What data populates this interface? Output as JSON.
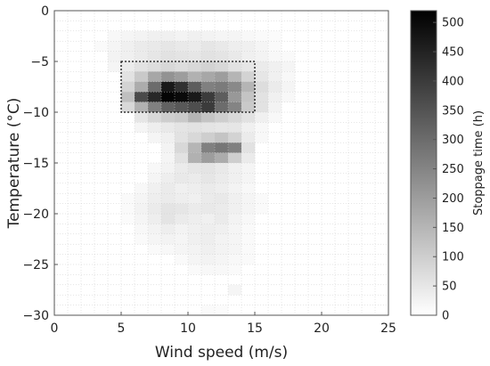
{
  "chart_data": {
    "type": "heatmap",
    "title": "",
    "xlabel": "Wind speed (m/s)",
    "ylabel": "Temperature (°C)",
    "xlim": [
      0,
      25
    ],
    "ylim": [
      -30,
      0
    ],
    "x_ticks": [
      0,
      5,
      10,
      15,
      20,
      25
    ],
    "y_ticks": [
      0,
      -5,
      -10,
      -15,
      -20,
      -25,
      -30
    ],
    "bin_size": {
      "x": 1,
      "y": 1
    },
    "grid": true,
    "colorbar": {
      "label": "Stoppage time (h)",
      "min": 0,
      "max": 520,
      "ticks": [
        0,
        50,
        100,
        150,
        200,
        250,
        300,
        350,
        400,
        450,
        500
      ],
      "colormap": "white-to-black"
    },
    "highlight_box": {
      "x_range": [
        5,
        15
      ],
      "y_range": [
        -10,
        -5
      ],
      "style": "dotted"
    },
    "cells": [
      [
        4,
        -2,
        15
      ],
      [
        5,
        -2,
        20
      ],
      [
        6,
        -2,
        25
      ],
      [
        7,
        -2,
        30
      ],
      [
        8,
        -2,
        30
      ],
      [
        9,
        -2,
        25
      ],
      [
        10,
        -2,
        30
      ],
      [
        11,
        -2,
        25
      ],
      [
        12,
        -2,
        20
      ],
      [
        13,
        -2,
        20
      ],
      [
        14,
        -2,
        15
      ],
      [
        15,
        -2,
        10
      ],
      [
        16,
        -2,
        8
      ],
      [
        3,
        -3,
        10
      ],
      [
        4,
        -3,
        20
      ],
      [
        5,
        -3,
        30
      ],
      [
        6,
        -3,
        40
      ],
      [
        7,
        -3,
        45
      ],
      [
        8,
        -3,
        50
      ],
      [
        9,
        -3,
        45
      ],
      [
        10,
        -3,
        40
      ],
      [
        11,
        -3,
        50
      ],
      [
        12,
        -3,
        45
      ],
      [
        13,
        -3,
        35
      ],
      [
        14,
        -3,
        30
      ],
      [
        15,
        -3,
        20
      ],
      [
        16,
        -3,
        10
      ],
      [
        4,
        -4,
        25
      ],
      [
        5,
        -4,
        30
      ],
      [
        6,
        -4,
        40
      ],
      [
        7,
        -4,
        50
      ],
      [
        8,
        -4,
        60
      ],
      [
        9,
        -4,
        55
      ],
      [
        10,
        -4,
        50
      ],
      [
        11,
        -4,
        60
      ],
      [
        12,
        -4,
        55
      ],
      [
        13,
        -4,
        45
      ],
      [
        14,
        -4,
        30
      ],
      [
        15,
        -4,
        25
      ],
      [
        16,
        -4,
        15
      ],
      [
        17,
        -4,
        10
      ],
      [
        4,
        -5,
        20
      ],
      [
        5,
        -5,
        40
      ],
      [
        6,
        -5,
        60
      ],
      [
        7,
        -5,
        70
      ],
      [
        8,
        -5,
        80
      ],
      [
        9,
        -5,
        70
      ],
      [
        10,
        -5,
        80
      ],
      [
        11,
        -5,
        90
      ],
      [
        12,
        -5,
        80
      ],
      [
        13,
        -5,
        60
      ],
      [
        14,
        -5,
        50
      ],
      [
        15,
        -5,
        40
      ],
      [
        16,
        -5,
        30
      ],
      [
        17,
        -5,
        20
      ],
      [
        5,
        -6,
        60
      ],
      [
        6,
        -6,
        110
      ],
      [
        7,
        -6,
        180
      ],
      [
        8,
        -6,
        220
      ],
      [
        9,
        -6,
        200
      ],
      [
        10,
        -6,
        160
      ],
      [
        11,
        -6,
        180
      ],
      [
        12,
        -6,
        200
      ],
      [
        13,
        -6,
        150
      ],
      [
        14,
        -6,
        90
      ],
      [
        15,
        -6,
        50
      ],
      [
        16,
        -6,
        30
      ],
      [
        17,
        -6,
        15
      ],
      [
        5,
        -7,
        90
      ],
      [
        6,
        -7,
        170
      ],
      [
        7,
        -7,
        300
      ],
      [
        8,
        -7,
        470
      ],
      [
        9,
        -7,
        420
      ],
      [
        10,
        -7,
        330
      ],
      [
        11,
        -7,
        260
      ],
      [
        12,
        -7,
        270
      ],
      [
        13,
        -7,
        240
      ],
      [
        14,
        -7,
        150
      ],
      [
        15,
        -7,
        70
      ],
      [
        16,
        -7,
        40
      ],
      [
        17,
        -7,
        20
      ],
      [
        5,
        -8,
        130
      ],
      [
        6,
        -8,
        370
      ],
      [
        7,
        -8,
        440
      ],
      [
        8,
        -8,
        510
      ],
      [
        9,
        -8,
        500
      ],
      [
        10,
        -8,
        470
      ],
      [
        11,
        -8,
        400
      ],
      [
        12,
        -8,
        330
      ],
      [
        13,
        -8,
        210
      ],
      [
        14,
        -8,
        120
      ],
      [
        15,
        -8,
        60
      ],
      [
        16,
        -8,
        30
      ],
      [
        17,
        -8,
        15
      ],
      [
        5,
        -9,
        80
      ],
      [
        6,
        -9,
        160
      ],
      [
        7,
        -9,
        260
      ],
      [
        8,
        -9,
        320
      ],
      [
        9,
        -9,
        340
      ],
      [
        10,
        -9,
        360
      ],
      [
        11,
        -9,
        400
      ],
      [
        12,
        -9,
        300
      ],
      [
        13,
        -9,
        250
      ],
      [
        14,
        -9,
        110
      ],
      [
        15,
        -9,
        60
      ],
      [
        16,
        -9,
        25
      ],
      [
        6,
        -10,
        50
      ],
      [
        7,
        -10,
        80
      ],
      [
        8,
        -10,
        100
      ],
      [
        9,
        -10,
        110
      ],
      [
        10,
        -10,
        150
      ],
      [
        11,
        -10,
        120
      ],
      [
        12,
        -10,
        100
      ],
      [
        13,
        -10,
        80
      ],
      [
        14,
        -10,
        60
      ],
      [
        15,
        -10,
        30
      ],
      [
        16,
        -10,
        15
      ],
      [
        6,
        -11,
        20
      ],
      [
        7,
        -11,
        35
      ],
      [
        8,
        -11,
        45
      ],
      [
        9,
        -11,
        55
      ],
      [
        10,
        -11,
        60
      ],
      [
        11,
        -11,
        55
      ],
      [
        12,
        -11,
        50
      ],
      [
        13,
        -11,
        50
      ],
      [
        14,
        -11,
        30
      ],
      [
        15,
        -11,
        15
      ],
      [
        7,
        -12,
        20
      ],
      [
        8,
        -12,
        30
      ],
      [
        9,
        -12,
        60
      ],
      [
        10,
        -12,
        80
      ],
      [
        11,
        -12,
        100
      ],
      [
        12,
        -12,
        120
      ],
      [
        13,
        -12,
        90
      ],
      [
        14,
        -12,
        40
      ],
      [
        15,
        -12,
        15
      ],
      [
        8,
        -13,
        25
      ],
      [
        9,
        -13,
        80
      ],
      [
        10,
        -13,
        150
      ],
      [
        11,
        -13,
        260
      ],
      [
        12,
        -13,
        280
      ],
      [
        13,
        -13,
        260
      ],
      [
        14,
        -13,
        60
      ],
      [
        8,
        -14,
        20
      ],
      [
        9,
        -14,
        60
      ],
      [
        10,
        -14,
        160
      ],
      [
        11,
        -14,
        200
      ],
      [
        12,
        -14,
        170
      ],
      [
        13,
        -14,
        100
      ],
      [
        14,
        -14,
        40
      ],
      [
        7,
        -15,
        15
      ],
      [
        8,
        -15,
        25
      ],
      [
        9,
        -15,
        40
      ],
      [
        10,
        -15,
        50
      ],
      [
        11,
        -15,
        55
      ],
      [
        12,
        -15,
        45
      ],
      [
        13,
        -15,
        30
      ],
      [
        14,
        -15,
        20
      ],
      [
        7,
        -16,
        20
      ],
      [
        8,
        -16,
        35
      ],
      [
        9,
        -16,
        45
      ],
      [
        10,
        -16,
        40
      ],
      [
        11,
        -16,
        50
      ],
      [
        12,
        -16,
        40
      ],
      [
        13,
        -16,
        30
      ],
      [
        14,
        -16,
        20
      ],
      [
        6,
        -17,
        15
      ],
      [
        7,
        -17,
        30
      ],
      [
        8,
        -17,
        40
      ],
      [
        9,
        -17,
        30
      ],
      [
        10,
        -17,
        35
      ],
      [
        11,
        -17,
        40
      ],
      [
        12,
        -17,
        35
      ],
      [
        13,
        -17,
        25
      ],
      [
        14,
        -17,
        15
      ],
      [
        5,
        -18,
        10
      ],
      [
        6,
        -18,
        20
      ],
      [
        7,
        -18,
        35
      ],
      [
        8,
        -18,
        40
      ],
      [
        9,
        -18,
        35
      ],
      [
        10,
        -18,
        30
      ],
      [
        11,
        -18,
        40
      ],
      [
        12,
        -18,
        45
      ],
      [
        13,
        -18,
        30
      ],
      [
        14,
        -18,
        20
      ],
      [
        15,
        -18,
        10
      ],
      [
        5,
        -19,
        10
      ],
      [
        6,
        -19,
        25
      ],
      [
        7,
        -19,
        40
      ],
      [
        8,
        -19,
        55
      ],
      [
        9,
        -19,
        50
      ],
      [
        10,
        -19,
        40
      ],
      [
        11,
        -19,
        45
      ],
      [
        12,
        -19,
        40
      ],
      [
        13,
        -19,
        30
      ],
      [
        14,
        -19,
        20
      ],
      [
        15,
        -19,
        10
      ],
      [
        5,
        -20,
        8
      ],
      [
        6,
        -20,
        20
      ],
      [
        7,
        -20,
        35
      ],
      [
        8,
        -20,
        55
      ],
      [
        9,
        -20,
        40
      ],
      [
        10,
        -20,
        35
      ],
      [
        11,
        -20,
        30
      ],
      [
        12,
        -20,
        40
      ],
      [
        13,
        -20,
        25
      ],
      [
        14,
        -20,
        15
      ],
      [
        6,
        -21,
        15
      ],
      [
        7,
        -21,
        25
      ],
      [
        8,
        -21,
        35
      ],
      [
        9,
        -21,
        25
      ],
      [
        10,
        -21,
        30
      ],
      [
        11,
        -21,
        35
      ],
      [
        12,
        -21,
        30
      ],
      [
        13,
        -21,
        20
      ],
      [
        14,
        -21,
        10
      ],
      [
        6,
        -22,
        10
      ],
      [
        7,
        -22,
        20
      ],
      [
        8,
        -22,
        25
      ],
      [
        9,
        -22,
        20
      ],
      [
        10,
        -22,
        30
      ],
      [
        11,
        -22,
        35
      ],
      [
        12,
        -22,
        25
      ],
      [
        13,
        -22,
        20
      ],
      [
        14,
        -22,
        10
      ],
      [
        7,
        -23,
        10
      ],
      [
        8,
        -23,
        15
      ],
      [
        9,
        -23,
        20
      ],
      [
        10,
        -23,
        25
      ],
      [
        11,
        -23,
        30
      ],
      [
        12,
        -23,
        25
      ],
      [
        13,
        -23,
        20
      ],
      [
        14,
        -23,
        10
      ],
      [
        9,
        -24,
        10
      ],
      [
        10,
        -24,
        20
      ],
      [
        11,
        -24,
        25
      ],
      [
        12,
        -24,
        20
      ],
      [
        13,
        -24,
        15
      ],
      [
        14,
        -24,
        10
      ],
      [
        10,
        -25,
        10
      ],
      [
        11,
        -25,
        15
      ],
      [
        12,
        -25,
        15
      ],
      [
        13,
        -25,
        10
      ],
      [
        13,
        -27,
        20
      ],
      [
        11,
        -29,
        10
      ],
      [
        12,
        -29,
        8
      ]
    ]
  }
}
